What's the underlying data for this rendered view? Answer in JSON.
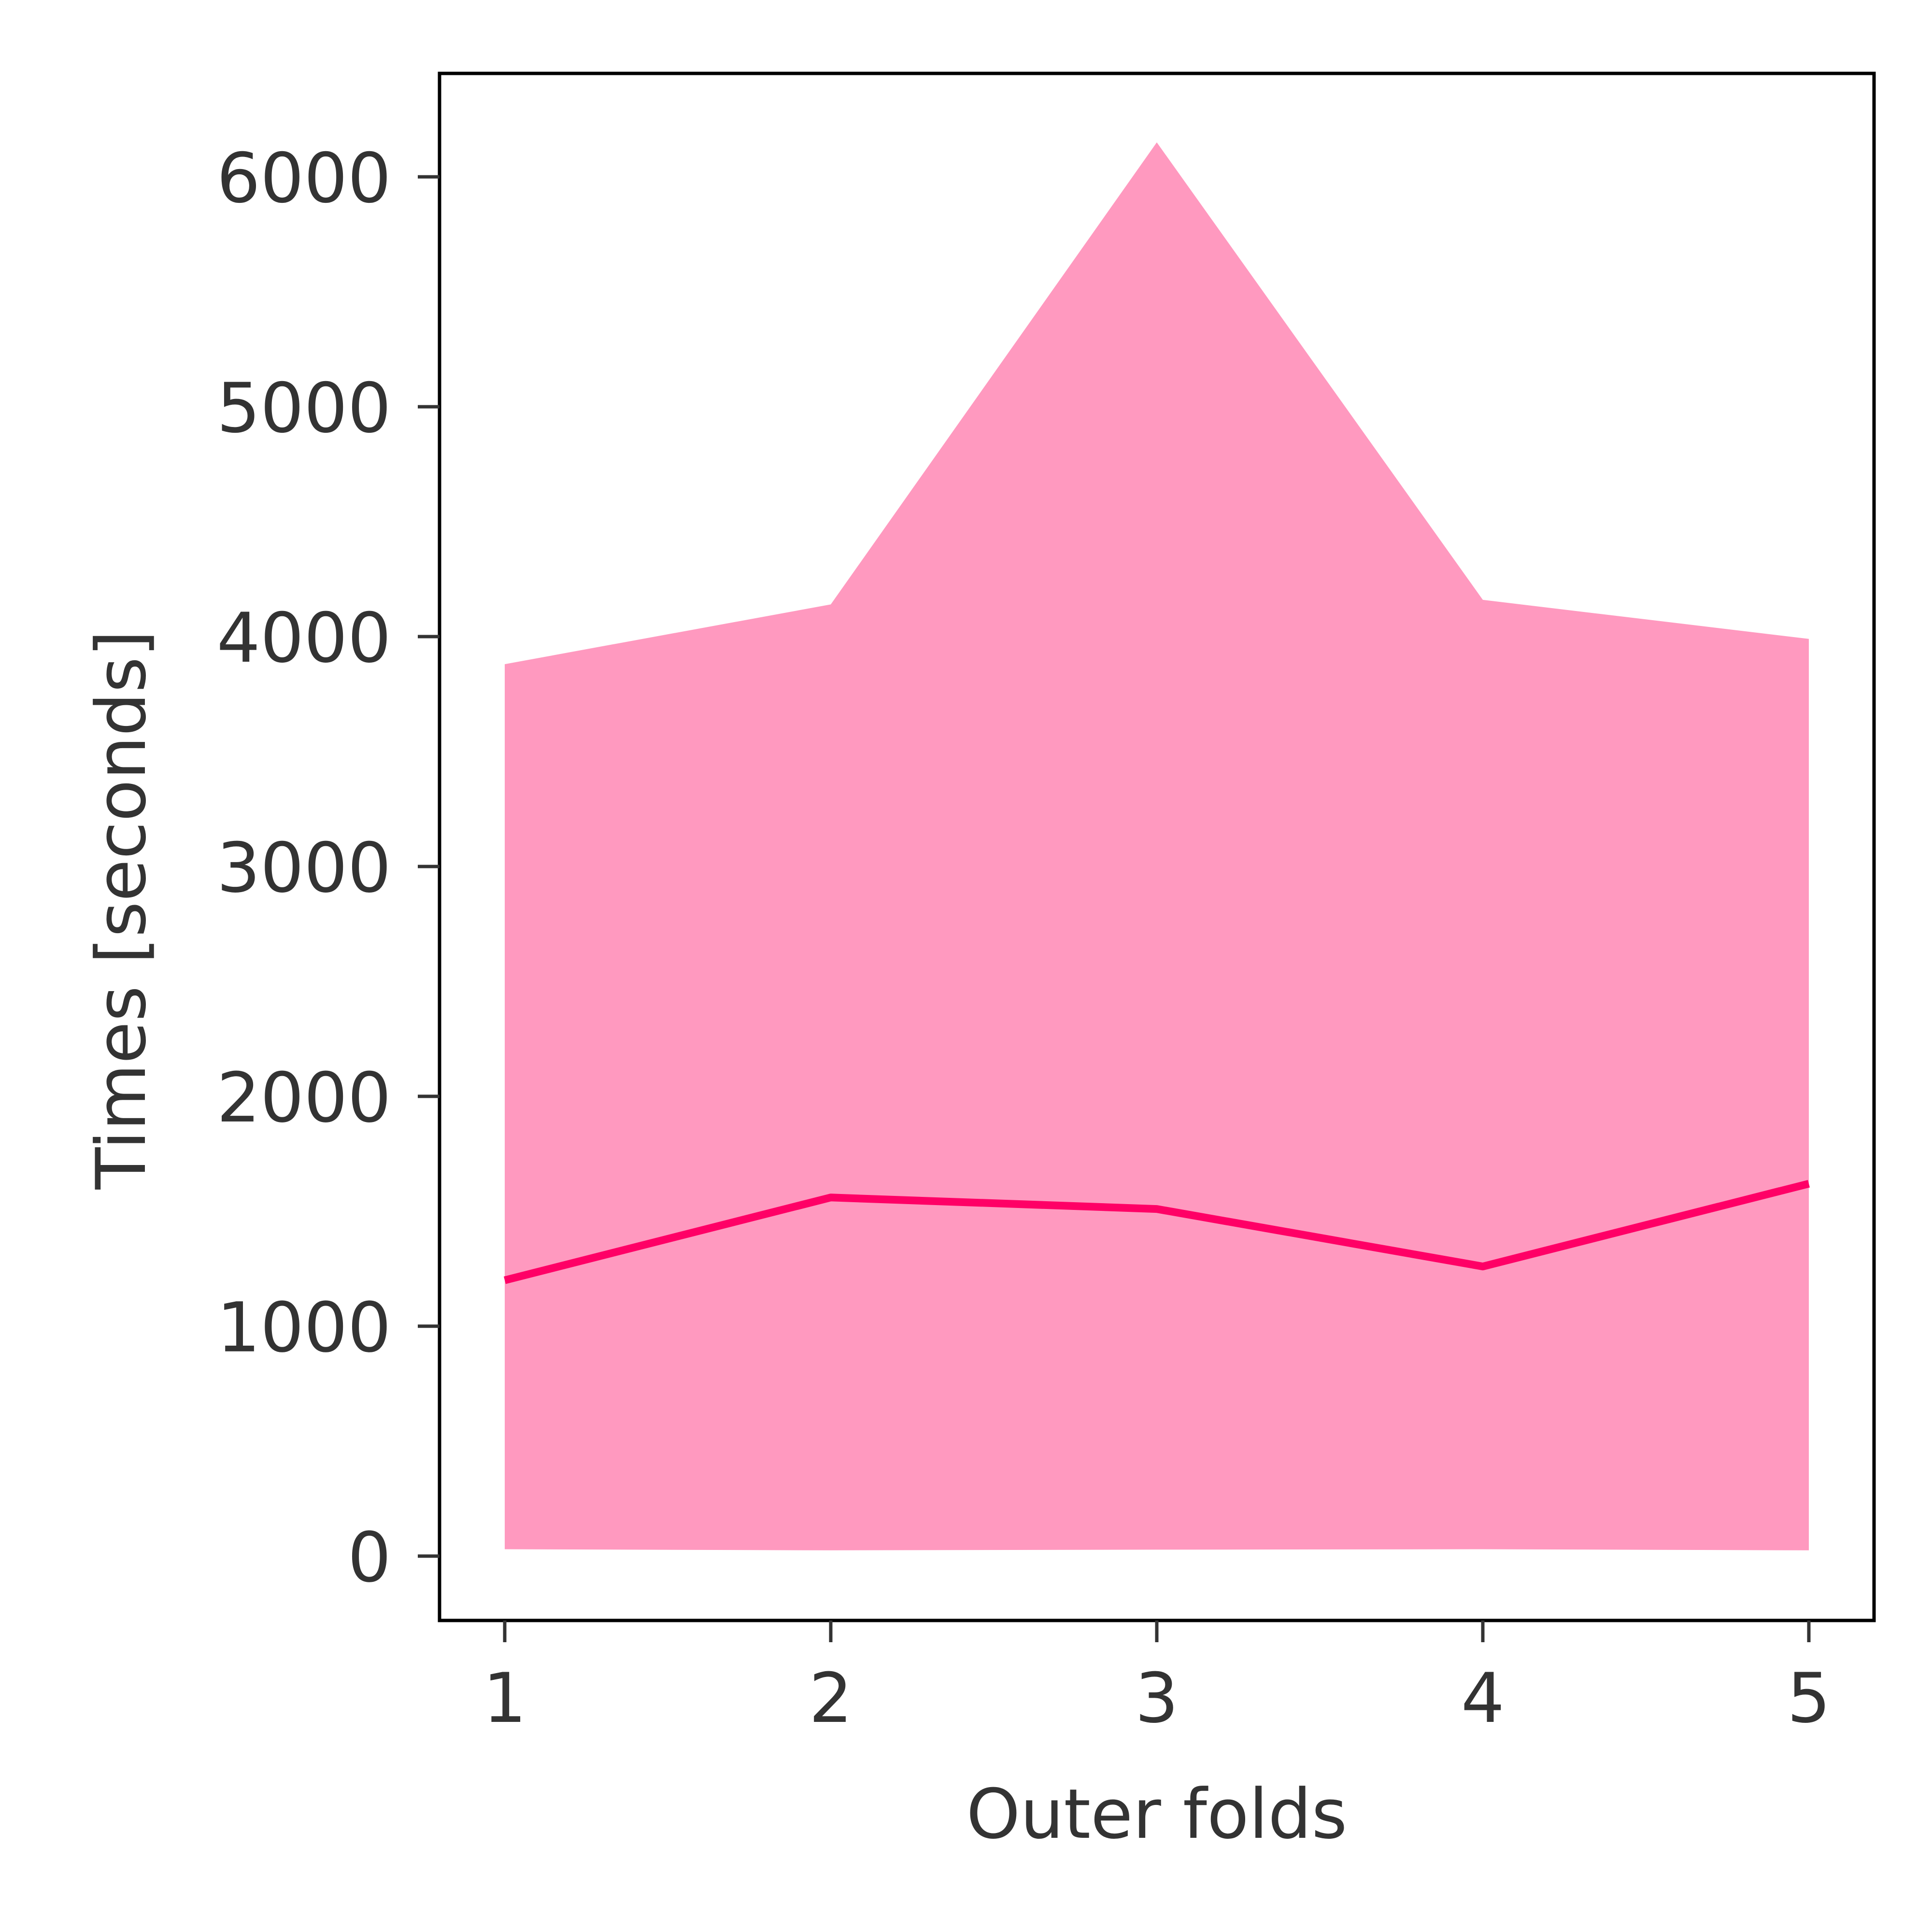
{
  "chart_data": {
    "type": "line",
    "x": [
      1,
      2,
      3,
      4,
      5
    ],
    "x_tick_labels": [
      "1",
      "2",
      "3",
      "4",
      "5"
    ],
    "xlim": [
      0.8,
      5.2
    ],
    "ylim": [
      -280,
      6450
    ],
    "y_ticks": [
      0,
      1000,
      2000,
      3000,
      4000,
      5000,
      6000
    ],
    "y_tick_labels": [
      "0",
      "1000",
      "2000",
      "3000",
      "4000",
      "5000",
      "6000"
    ],
    "xlabel": "Outer folds",
    "ylabel": "Times [seconds]",
    "grid": false,
    "legend": "none",
    "series": [
      {
        "values": [
          1200,
          1560,
          1510,
          1260,
          1620
        ],
        "band_lower": [
          30,
          25,
          28,
          30,
          25
        ],
        "band_upper": [
          3880,
          4140,
          6150,
          4160,
          3990
        ]
      }
    ],
    "colors": {
      "line": "#ff0066",
      "band": "#ff99bf",
      "axes": "#000000",
      "text": "#333333"
    }
  }
}
